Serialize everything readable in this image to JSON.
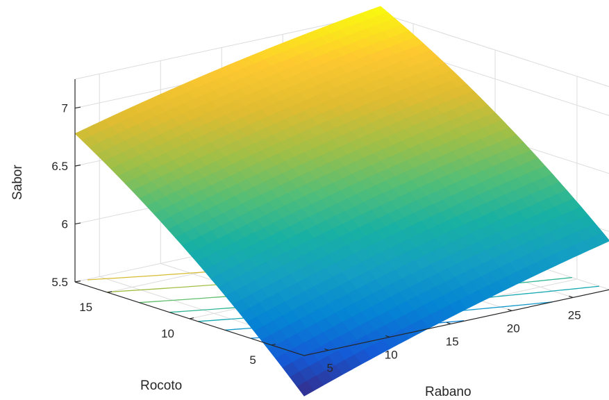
{
  "chart_data": {
    "type": "surface",
    "title": "",
    "xlabel": "Rabano",
    "ylabel": "Rocoto",
    "zlabel": "Sabor",
    "xlim": [
      3,
      28
    ],
    "ylim": [
      3,
      17
    ],
    "zlim": [
      5.5,
      7.25
    ],
    "xticks": [
      "5",
      "10",
      "15",
      "20",
      "25"
    ],
    "yticks": [
      "5",
      "10",
      "15"
    ],
    "zticks": [
      "5.5",
      "6",
      "6.5",
      "7"
    ],
    "colormap": "parula",
    "grid": true,
    "contour_projection": true,
    "corner_values": [
      {
        "x": 3,
        "y": 3,
        "z": 5.15
      },
      {
        "x": 3,
        "y": 17,
        "z": 6.78
      },
      {
        "x": 28,
        "y": 17,
        "z": 7.31
      },
      {
        "x": 28,
        "y": 3,
        "z": 5.92
      }
    ]
  }
}
